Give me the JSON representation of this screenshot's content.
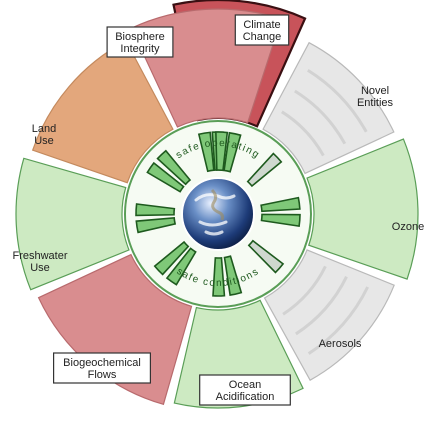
{
  "colors": {
    "red_strong": "#c8535a",
    "red": "#d98d8f",
    "orange": "#e3a77c",
    "green_fill": "#cdeac2",
    "green_stroke": "#5a9e57",
    "grey_fill": "#e7e7e7",
    "grey_stroke": "#b9b9b9",
    "inner_green": "#7fc878",
    "inner_border": "#1e5a1e",
    "ring_fill": "#f6fbf3"
  },
  "inner_ring_text": {
    "top": "safe operating",
    "bottom": "safe conditions"
  },
  "segments": [
    {
      "key": "climate",
      "label_lines": [
        "Climate",
        "Change"
      ],
      "status": "red_strong",
      "boxed": true,
      "bold_outline": true
    },
    {
      "key": "novel",
      "label_lines": [
        "Novel",
        "Entities"
      ],
      "status": "grey",
      "boxed": false,
      "bold_outline": false
    },
    {
      "key": "ozone",
      "label_lines": [
        "Ozone"
      ],
      "status": "green",
      "boxed": false,
      "bold_outline": false
    },
    {
      "key": "aerosols",
      "label_lines": [
        "Aerosols"
      ],
      "status": "grey",
      "boxed": false,
      "bold_outline": false
    },
    {
      "key": "ocean",
      "label_lines": [
        "Ocean",
        "Acidification"
      ],
      "status": "green",
      "boxed": true,
      "bold_outline": false
    },
    {
      "key": "biogeo",
      "label_lines": [
        "Biogeochemical",
        "Flows"
      ],
      "status": "red",
      "boxed": true,
      "bold_outline": false
    },
    {
      "key": "freshwater",
      "label_lines": [
        "Freshwater",
        "Use"
      ],
      "status": "green",
      "boxed": false,
      "bold_outline": false
    },
    {
      "key": "land",
      "label_lines": [
        "Land",
        "Use"
      ],
      "status": "orange",
      "boxed": false,
      "bold_outline": false
    },
    {
      "key": "biosphere",
      "label_lines": [
        "Biosphere",
        "Integrity"
      ],
      "status": "red",
      "boxed": true,
      "bold_outline": false
    }
  ]
}
